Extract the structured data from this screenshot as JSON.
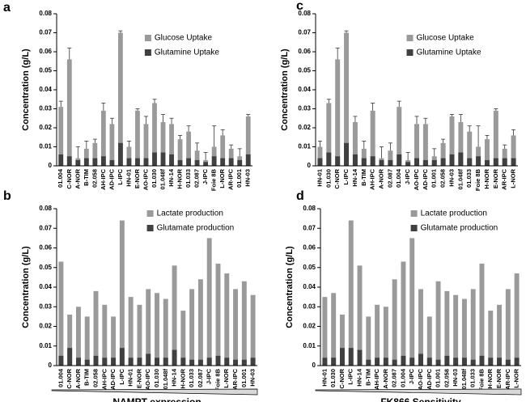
{
  "chart_data": [
    {
      "type": "bar",
      "panel_label": "a",
      "ylabel": "Concentration (g/L)",
      "legend": "top-center",
      "ylim": [
        0,
        0.08
      ],
      "yticks": [
        0,
        0.01,
        0.02,
        0.03,
        0.04,
        0.05,
        0.06,
        0.07,
        0.08
      ],
      "categories": [
        "01.004",
        "C-NOR",
        "A-NOR",
        "B-TIM",
        "02.058",
        "AH-IPC",
        "AD-IPC",
        "L-IPC",
        "HN-01",
        "E-NOR",
        "AO-IPC",
        "01.030",
        "01.048f",
        "HN-14",
        "H-NOR",
        "01.033",
        "02.087",
        "J-IPC",
        "Foie 8B",
        "L-NOR",
        "AR-IPC",
        "01.001",
        "HN-03"
      ],
      "series": [
        {
          "name": "Glucose Uptake",
          "color": "#9a9a9a",
          "values": [
            0.031,
            0.056,
            0.004,
            0.009,
            0.012,
            0.029,
            0.022,
            0.07,
            0.01,
            0.029,
            0.022,
            0.033,
            0.023,
            0.022,
            0.014,
            0.018,
            0.008,
            0.003,
            0.01,
            0.016,
            0.009,
            0.005,
            0.026
          ],
          "errors": [
            0.003,
            0.006,
            0.006,
            0.004,
            0.002,
            0.004,
            0.003,
            0.001,
            0.003,
            0.001,
            0.004,
            0.002,
            0.004,
            0.003,
            0.002,
            0.003,
            0.004,
            0.004,
            0.011,
            0.003,
            0.002,
            0.004,
            0.001
          ]
        },
        {
          "name": "Glutamine Uptake",
          "color": "#404040",
          "values": [
            0.006,
            0.005,
            0.003,
            0.004,
            0.004,
            0.005,
            0.003,
            0.012,
            0.004,
            0.004,
            0.004,
            0.007,
            0.007,
            0.006,
            0.003,
            0.004,
            0.003,
            0.002,
            0.005,
            0.004,
            0.004,
            0.003,
            0.006
          ]
        }
      ]
    },
    {
      "type": "bar",
      "panel_label": "b",
      "ylabel": "Concentration (g/L)",
      "xlabel": "NAMPT expression",
      "legend": "top-center",
      "ylim": [
        0,
        0.08
      ],
      "yticks": [
        0,
        0.01,
        0.02,
        0.03,
        0.04,
        0.05,
        0.06,
        0.07,
        0.08
      ],
      "categories": [
        "01.004",
        "C-NOR",
        "A-NOR",
        "B-TIM",
        "02.058",
        "AH-IPC",
        "AD-IPC",
        "L-IPC",
        "HN-01",
        "E-NOR",
        "AO-IPC",
        "01.030",
        "01.048f",
        "HN-14",
        "H-NOR",
        "01.033",
        "02.087",
        "J-IPC",
        "Foie 8B",
        "L-NOR",
        "AR-IPC",
        "01.001",
        "HN-03"
      ],
      "series": [
        {
          "name": "Lactate production",
          "color": "#9a9a9a",
          "values": [
            0.053,
            0.026,
            0.03,
            0.025,
            0.038,
            0.031,
            0.025,
            0.074,
            0.035,
            0.031,
            0.039,
            0.037,
            0.034,
            0.051,
            0.028,
            0.039,
            0.044,
            0.065,
            0.052,
            0.047,
            0.039,
            0.043,
            0.036
          ]
        },
        {
          "name": "Glutamate production",
          "color": "#404040",
          "values": [
            0.005,
            0.009,
            0.004,
            0.003,
            0.005,
            0.004,
            0.004,
            0.009,
            0.004,
            0.004,
            0.006,
            0.004,
            0.004,
            0.008,
            0.004,
            0.003,
            0.003,
            0.004,
            0.005,
            0.004,
            0.003,
            0.003,
            0.004
          ]
        }
      ]
    },
    {
      "type": "bar",
      "panel_label": "c",
      "ylabel": "Concentration (g/L)",
      "legend": "top-center",
      "ylim": [
        0,
        0.08
      ],
      "yticks": [
        0,
        0.01,
        0.02,
        0.03,
        0.04,
        0.05,
        0.06,
        0.07,
        0.08
      ],
      "categories": [
        "HN-01",
        "01.030",
        "C-NOR",
        "L-IPC",
        "HN-14",
        "B-TIM",
        "AH-IPC",
        "A-NOR",
        "02.087",
        "01.004",
        "J-IPC",
        "AO-IPC",
        "AD-IPC",
        "01.001",
        "02.058",
        "HN-03",
        "01.048f",
        "01.033",
        "Foie 8B",
        "H-NOR",
        "E-NOR",
        "AR-IPC",
        "L-NOR"
      ],
      "series": [
        {
          "name": "Glucose Uptake",
          "color": "#9a9a9a",
          "values": [
            0.01,
            0.033,
            0.056,
            0.07,
            0.023,
            0.009,
            0.029,
            0.004,
            0.008,
            0.031,
            0.003,
            0.022,
            0.022,
            0.005,
            0.012,
            0.026,
            0.023,
            0.018,
            0.01,
            0.014,
            0.029,
            0.009,
            0.016
          ],
          "errors": [
            0.003,
            0.002,
            0.006,
            0.001,
            0.003,
            0.004,
            0.004,
            0.006,
            0.004,
            0.003,
            0.004,
            0.004,
            0.003,
            0.004,
            0.002,
            0.001,
            0.004,
            0.003,
            0.011,
            0.002,
            0.001,
            0.002,
            0.003
          ]
        },
        {
          "name": "Glutamine Uptake",
          "color": "#404040",
          "values": [
            0.004,
            0.007,
            0.005,
            0.012,
            0.006,
            0.004,
            0.005,
            0.003,
            0.003,
            0.006,
            0.002,
            0.004,
            0.003,
            0.003,
            0.004,
            0.006,
            0.007,
            0.004,
            0.005,
            0.003,
            0.004,
            0.004,
            0.004
          ]
        }
      ]
    },
    {
      "type": "bar",
      "panel_label": "d",
      "ylabel": "Concentration (g/L)",
      "xlabel": "FK866 Sensitivity",
      "legend": "top-center",
      "ylim": [
        0,
        0.08
      ],
      "yticks": [
        0,
        0.01,
        0.02,
        0.03,
        0.04,
        0.05,
        0.06,
        0.07,
        0.08
      ],
      "categories": [
        "HN-01",
        "01.030",
        "C-NOR",
        "L-IPC",
        "HN-14",
        "B-TIM",
        "AH-IPC",
        "A-NOR",
        "02.087",
        "01.004",
        "J-IPC",
        "AO-IPC",
        "AD-IPC",
        "01.001",
        "02.058",
        "HN-03",
        "01.048f",
        "01.033",
        "Foie 8B",
        "H-NOR",
        "E-NOR",
        "AR-IPC",
        "L-NOR"
      ],
      "series": [
        {
          "name": "Lactate production",
          "color": "#9a9a9a",
          "values": [
            0.035,
            0.037,
            0.026,
            0.074,
            0.051,
            0.025,
            0.031,
            0.03,
            0.044,
            0.053,
            0.065,
            0.039,
            0.025,
            0.043,
            0.038,
            0.036,
            0.034,
            0.039,
            0.052,
            0.028,
            0.031,
            0.039,
            0.047
          ]
        },
        {
          "name": "Glutamate production",
          "color": "#404040",
          "values": [
            0.004,
            0.004,
            0.009,
            0.009,
            0.008,
            0.003,
            0.004,
            0.004,
            0.003,
            0.005,
            0.004,
            0.006,
            0.004,
            0.003,
            0.005,
            0.004,
            0.004,
            0.003,
            0.005,
            0.004,
            0.004,
            0.003,
            0.004
          ]
        }
      ]
    }
  ]
}
